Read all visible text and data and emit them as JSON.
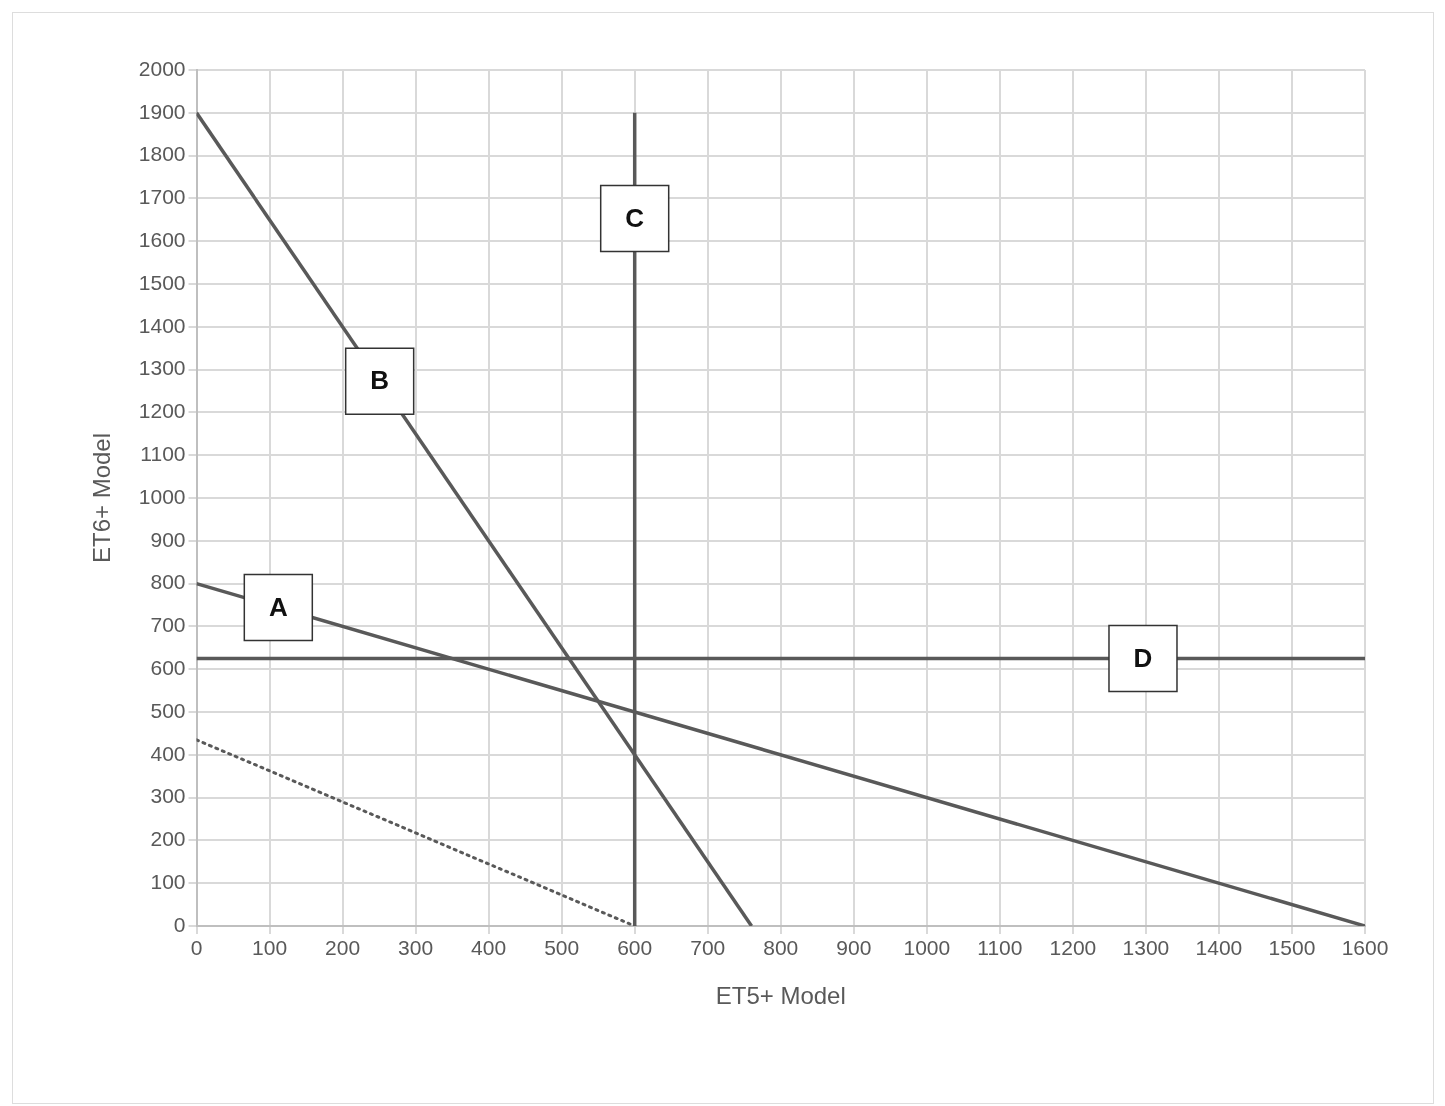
{
  "chart_data": {
    "type": "line",
    "xlabel": "ET5+ Model",
    "ylabel": "ET6+ Model",
    "xlim": [
      0,
      1600
    ],
    "xticks": [
      0,
      100,
      200,
      300,
      400,
      500,
      600,
      700,
      800,
      900,
      1000,
      1100,
      1200,
      1300,
      1400,
      1500,
      1600
    ],
    "ylim": [
      0,
      2000
    ],
    "yticks": [
      0,
      100,
      200,
      300,
      400,
      500,
      600,
      700,
      800,
      900,
      1000,
      1100,
      1200,
      1300,
      1400,
      1500,
      1600,
      1700,
      1800,
      1900,
      2000
    ],
    "grid": true,
    "legend": false,
    "marker": "none",
    "series": [
      {
        "name": "A",
        "color": "#595959",
        "x": [
          0,
          1600
        ],
        "values": [
          800,
          0
        ],
        "line_style": "solid"
      },
      {
        "name": "B",
        "color": "#595959",
        "x": [
          0,
          760
        ],
        "values": [
          1900,
          0
        ],
        "line_style": "solid"
      },
      {
        "name": "C",
        "color": "#595959",
        "x": [
          600,
          600
        ],
        "values": [
          0,
          1900
        ],
        "line_style": "solid"
      },
      {
        "name": "D",
        "color": "#595959",
        "x": [
          0,
          1600
        ],
        "values": [
          625,
          625
        ],
        "line_style": "solid"
      },
      {
        "color": "#595959",
        "x": [
          0,
          600
        ],
        "values": [
          435,
          0
        ],
        "line_style": "dotted"
      }
    ]
  }
}
